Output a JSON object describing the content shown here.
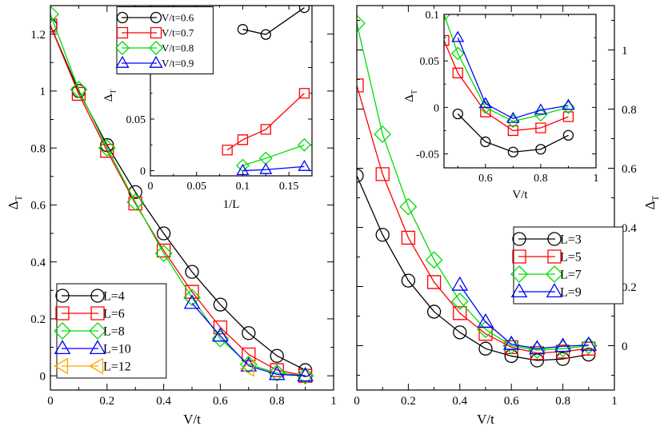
{
  "chart_data": [
    {
      "id": "left_main",
      "type": "line",
      "xlabel": "V/t",
      "ylabel": "Δ",
      "ylabel_sub": "T",
      "xlim": [
        0,
        1
      ],
      "ylim": [
        -0.05,
        1.3
      ],
      "xticks": [
        0,
        0.2,
        0.4,
        0.6,
        0.8,
        1
      ],
      "xtick_labels": [
        "0",
        "0.2",
        "0.4",
        "0.6",
        "0.8",
        "1"
      ],
      "yticks": [
        0,
        0.2,
        0.4,
        0.6,
        0.8,
        1,
        1.2
      ],
      "ytick_labels": [
        "0",
        "0.2",
        "0.4",
        "0.6",
        "0.8",
        "1",
        "1.2"
      ],
      "legend_position": "bottom-left",
      "series": [
        {
          "name": "L=4",
          "color": "#000000",
          "marker": "circle",
          "x": [
            0,
            0.1,
            0.2,
            0.3,
            0.4,
            0.5,
            0.6,
            0.7,
            0.8,
            0.9
          ],
          "y": [
            1.23,
            1.0,
            0.81,
            0.645,
            0.5,
            0.365,
            0.25,
            0.15,
            0.07,
            0.02
          ]
        },
        {
          "name": "L=6",
          "color": "#ff0000",
          "marker": "square",
          "x": [
            0,
            0.1,
            0.2,
            0.3,
            0.4,
            0.5,
            0.6,
            0.7,
            0.8,
            0.9
          ],
          "y": [
            1.23,
            0.99,
            0.79,
            0.605,
            0.44,
            0.295,
            0.17,
            0.075,
            0.02,
            0.0
          ]
        },
        {
          "name": "L=8",
          "color": "#00dd00",
          "marker": "diamond",
          "x": [
            0,
            0.1,
            0.2,
            0.3,
            0.4,
            0.5,
            0.6,
            0.7,
            0.8,
            0.9
          ],
          "y": [
            1.27,
            1.005,
            0.8,
            0.61,
            0.43,
            0.275,
            0.13,
            0.04,
            0.01,
            0.0
          ]
        },
        {
          "name": "L=10",
          "color": "#0000ff",
          "marker": "triangle-up",
          "x": [
            0.5,
            0.6,
            0.7,
            0.8,
            0.9
          ],
          "y": [
            0.255,
            0.14,
            0.035,
            0.005,
            0.0
          ]
        },
        {
          "name": "L=12",
          "color": "#ffa500",
          "marker": "triangle-left",
          "x": [
            0.7
          ],
          "y": [
            0.025
          ]
        }
      ]
    },
    {
      "id": "left_inset",
      "type": "line",
      "xlabel": "1/L",
      "ylabel": "Δ",
      "ylabel_sub": "T",
      "xlim": [
        0,
        0.175
      ],
      "ylim": [
        -0.005,
        0.16
      ],
      "xticks": [
        0,
        0.05,
        0.1,
        0.15
      ],
      "xtick_labels": [
        "0",
        "0.05",
        "0.1",
        "0.15"
      ],
      "yticks": [
        0,
        0.05,
        0.1
      ],
      "ytick_labels": [
        "0",
        "0.05",
        "0.1"
      ],
      "legend_position": "top-left",
      "series": [
        {
          "name": "V/t=0.6",
          "color": "#000000",
          "marker": "circle",
          "x": [
            0.1,
            0.125,
            0.1667
          ],
          "y": [
            0.137,
            0.132,
            0.158
          ]
        },
        {
          "name": "V/t=0.7",
          "color": "#ff0000",
          "marker": "square",
          "x": [
            0.0833,
            0.1,
            0.125,
            0.1667
          ],
          "y": [
            0.02,
            0.03,
            0.04,
            0.075
          ]
        },
        {
          "name": "V/t=0.8",
          "color": "#00dd00",
          "marker": "diamond",
          "x": [
            0.1,
            0.125,
            0.1667
          ],
          "y": [
            0.005,
            0.012,
            0.025
          ]
        },
        {
          "name": "V/t=0.9",
          "color": "#0000ff",
          "marker": "triangle-up",
          "x": [
            0.1,
            0.125,
            0.1667
          ],
          "y": [
            0.0,
            0.001,
            0.004
          ]
        }
      ]
    },
    {
      "id": "right_main",
      "type": "line",
      "xlabel": "V/t",
      "ylabel": "Δ",
      "ylabel_sub": "T",
      "xlim": [
        0,
        1
      ],
      "ylim": [
        -0.15,
        1.15
      ],
      "xticks": [
        0,
        0.2,
        0.4,
        0.6,
        0.8,
        1
      ],
      "xtick_labels": [
        "0",
        "0.2",
        "0.4",
        "0.6",
        "0.8",
        "1"
      ],
      "yticks": [
        0,
        0.2,
        0.4,
        0.6,
        0.8,
        1
      ],
      "ytick_labels": [
        "0",
        "0.2",
        "0.4",
        "0.6",
        "0.8",
        "1"
      ],
      "legend_position": "bottom-right",
      "series": [
        {
          "name": "L=3",
          "color": "#000000",
          "marker": "circle",
          "x": [
            0,
            0.1,
            0.2,
            0.3,
            0.4,
            0.5,
            0.6,
            0.7,
            0.8,
            0.9
          ],
          "y": [
            0.575,
            0.375,
            0.22,
            0.115,
            0.045,
            -0.01,
            -0.035,
            -0.05,
            -0.045,
            -0.03
          ]
        },
        {
          "name": "L=5",
          "color": "#ff0000",
          "marker": "square",
          "x": [
            0,
            0.1,
            0.2,
            0.3,
            0.4,
            0.5,
            0.6,
            0.7,
            0.8,
            0.9
          ],
          "y": [
            0.88,
            0.58,
            0.365,
            0.215,
            0.11,
            0.04,
            -0.005,
            -0.025,
            -0.02,
            -0.01
          ]
        },
        {
          "name": "L=7",
          "color": "#00dd00",
          "marker": "diamond",
          "x": [
            0,
            0.1,
            0.2,
            0.3,
            0.4,
            0.5,
            0.6,
            0.7,
            0.8,
            0.9
          ],
          "y": [
            1.09,
            0.715,
            0.47,
            0.29,
            0.15,
            0.055,
            0.0,
            -0.015,
            -0.01,
            0.0
          ]
        },
        {
          "name": "L=9",
          "color": "#0000ff",
          "marker": "triangle-up",
          "x": [
            0.4,
            0.5,
            0.6,
            0.7,
            0.8,
            0.9
          ],
          "y": [
            0.205,
            0.08,
            0.005,
            -0.01,
            -0.002,
            0.002
          ]
        }
      ]
    },
    {
      "id": "right_inset",
      "type": "line",
      "xlabel": "V/t",
      "ylabel": "Δ",
      "ylabel_sub": "T",
      "xlim": [
        0.45,
        1
      ],
      "ylim": [
        -0.065,
        0.1
      ],
      "xticks": [
        0.6,
        0.8,
        1
      ],
      "xtick_labels": [
        "0.6",
        "0.8",
        "1"
      ],
      "yticks": [
        -0.05,
        0,
        0.05,
        0.1
      ],
      "ytick_labels": [
        "-0.05",
        "0",
        "0.05",
        "0.1"
      ],
      "legend_position": "none",
      "series": [
        {
          "name": "L=3",
          "color": "#000000",
          "marker": "circle",
          "x": [
            0.5,
            0.6,
            0.7,
            0.8,
            0.9
          ],
          "y": [
            -0.007,
            -0.037,
            -0.048,
            -0.045,
            -0.03
          ]
        },
        {
          "name": "L=5",
          "color": "#ff0000",
          "marker": "square",
          "x": [
            0.45,
            0.5,
            0.6,
            0.7,
            0.8,
            0.9
          ],
          "y": [
            0.072,
            0.037,
            -0.005,
            -0.025,
            -0.022,
            -0.01
          ]
        },
        {
          "name": "L=7",
          "color": "#00dd00",
          "marker": "diamond",
          "x": [
            0.45,
            0.5,
            0.6,
            0.7,
            0.8,
            0.9
          ],
          "y": [
            0.1,
            0.058,
            0.0,
            -0.015,
            -0.008,
            0.0
          ]
        },
        {
          "name": "L=9",
          "color": "#0000ff",
          "marker": "triangle-up",
          "x": [
            0.5,
            0.6,
            0.7,
            0.8,
            0.9
          ],
          "y": [
            0.075,
            0.004,
            -0.012,
            -0.003,
            0.002
          ]
        }
      ]
    }
  ]
}
